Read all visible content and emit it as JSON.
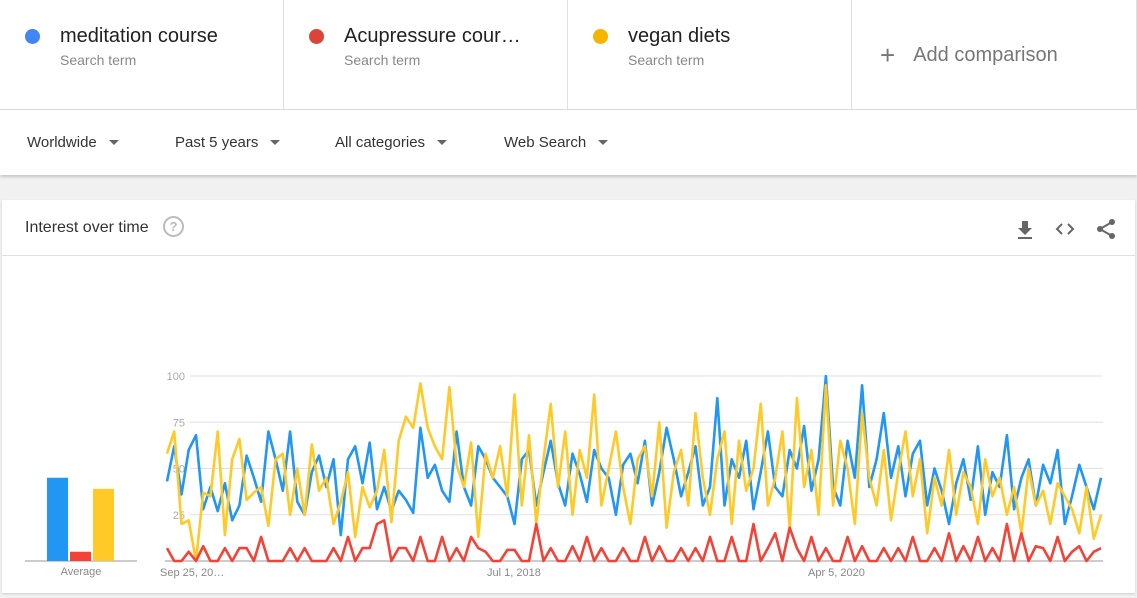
{
  "terms": [
    {
      "name": "meditation course",
      "sub": "Search term",
      "color": "#4285f4"
    },
    {
      "name": "Acupressure cour…",
      "sub": "Search term",
      "color": "#db4437"
    },
    {
      "name": "vegan diets",
      "sub": "Search term",
      "color": "#f4b400"
    }
  ],
  "add_comparison": "Add comparison",
  "filters": {
    "region": "Worldwide",
    "time": "Past 5 years",
    "category": "All categories",
    "search_type": "Web Search"
  },
  "card": {
    "title": "Interest over time",
    "help": "?",
    "icons": [
      "download-icon",
      "embed-code-icon",
      "share-icon"
    ]
  },
  "chart_data": {
    "type": "line",
    "title": "",
    "ylim": [
      0,
      100
    ],
    "y_ticks": [
      "25",
      "50",
      "75",
      "100"
    ],
    "x_ticks": [
      "Sep 25, 20…",
      "Jul 1, 2018",
      "Apr 5, 2020"
    ],
    "grid": true,
    "average": {
      "label": "Average",
      "values": [
        45,
        5,
        39
      ]
    },
    "series": [
      {
        "name": "meditation course",
        "color": "#2196f3",
        "values": [
          43,
          62,
          36,
          60,
          68,
          28,
          40,
          27,
          42,
          22,
          30,
          57,
          45,
          32,
          70,
          55,
          38,
          70,
          32,
          25,
          48,
          57,
          40,
          55,
          14,
          55,
          62,
          42,
          64,
          28,
          40,
          27,
          38,
          33,
          26,
          72,
          45,
          52,
          38,
          32,
          70,
          40,
          30,
          62,
          55,
          45,
          40,
          35,
          20,
          55,
          60,
          30,
          48,
          65,
          42,
          30,
          58,
          47,
          32,
          60,
          50,
          45,
          25,
          52,
          58,
          42,
          65,
          30,
          48,
          72,
          55,
          35,
          48,
          62,
          30,
          40,
          88,
          30,
          55,
          45,
          65,
          28,
          48,
          70,
          40,
          35,
          60,
          50,
          73,
          38,
          55,
          100,
          40,
          30,
          65,
          45,
          95,
          40,
          55,
          80,
          45,
          62,
          35,
          58,
          65,
          30,
          50,
          38,
          20,
          42,
          55,
          33,
          62,
          25,
          48,
          40,
          68,
          28,
          45,
          55,
          30,
          52,
          42,
          60,
          20,
          35,
          52,
          40,
          28,
          45
        ]
      },
      {
        "name": "Acupressure cour…",
        "color": "#f44336",
        "values": [
          7,
          0,
          0,
          5,
          0,
          8,
          0,
          0,
          7,
          0,
          7,
          7,
          0,
          13,
          0,
          0,
          0,
          7,
          0,
          7,
          0,
          0,
          0,
          7,
          0,
          13,
          0,
          7,
          7,
          20,
          22,
          0,
          7,
          7,
          0,
          13,
          0,
          0,
          13,
          0,
          7,
          0,
          13,
          7,
          5,
          0,
          0,
          6,
          6,
          0,
          0,
          20,
          0,
          7,
          0,
          0,
          8,
          0,
          13,
          0,
          7,
          0,
          0,
          7,
          0,
          0,
          13,
          0,
          8,
          0,
          0,
          7,
          0,
          7,
          0,
          13,
          0,
          0,
          13,
          0,
          0,
          20,
          0,
          7,
          15,
          0,
          18,
          7,
          0,
          13,
          0,
          7,
          0,
          0,
          13,
          0,
          8,
          0,
          0,
          7,
          0,
          7,
          0,
          13,
          0,
          0,
          7,
          0,
          15,
          0,
          8,
          0,
          13,
          0,
          7,
          0,
          20,
          0,
          15,
          0,
          8,
          7,
          0,
          13,
          0,
          5,
          8,
          0,
          5,
          7
        ]
      },
      {
        "name": "vegan diets",
        "color": "#ffca28",
        "values": [
          58,
          70,
          20,
          22,
          0,
          37,
          35,
          70,
          14,
          55,
          66,
          33,
          37,
          40,
          19,
          55,
          58,
          25,
          50,
          25,
          63,
          38,
          45,
          20,
          32,
          48,
          13,
          40,
          29,
          38,
          60,
          21,
          65,
          78,
          72,
          96,
          72,
          62,
          55,
          94,
          52,
          40,
          64,
          13,
          58,
          45,
          62,
          35,
          90,
          30,
          68,
          20,
          55,
          85,
          40,
          70,
          25,
          60,
          45,
          90,
          30,
          50,
          70,
          40,
          20,
          55,
          62,
          35,
          75,
          18,
          48,
          60,
          30,
          80,
          45,
          25,
          55,
          70,
          20,
          65,
          38,
          50,
          85,
          30,
          45,
          70,
          18,
          88,
          40,
          60,
          25,
          95,
          30,
          65,
          50,
          20,
          80,
          45,
          30,
          60,
          22,
          48,
          70,
          35,
          55,
          15,
          45,
          30,
          60,
          25,
          48,
          40,
          20,
          55,
          35,
          45,
          25,
          40,
          15,
          50,
          30,
          38,
          20,
          42,
          35,
          28,
          15,
          40,
          12,
          25
        ]
      }
    ]
  }
}
